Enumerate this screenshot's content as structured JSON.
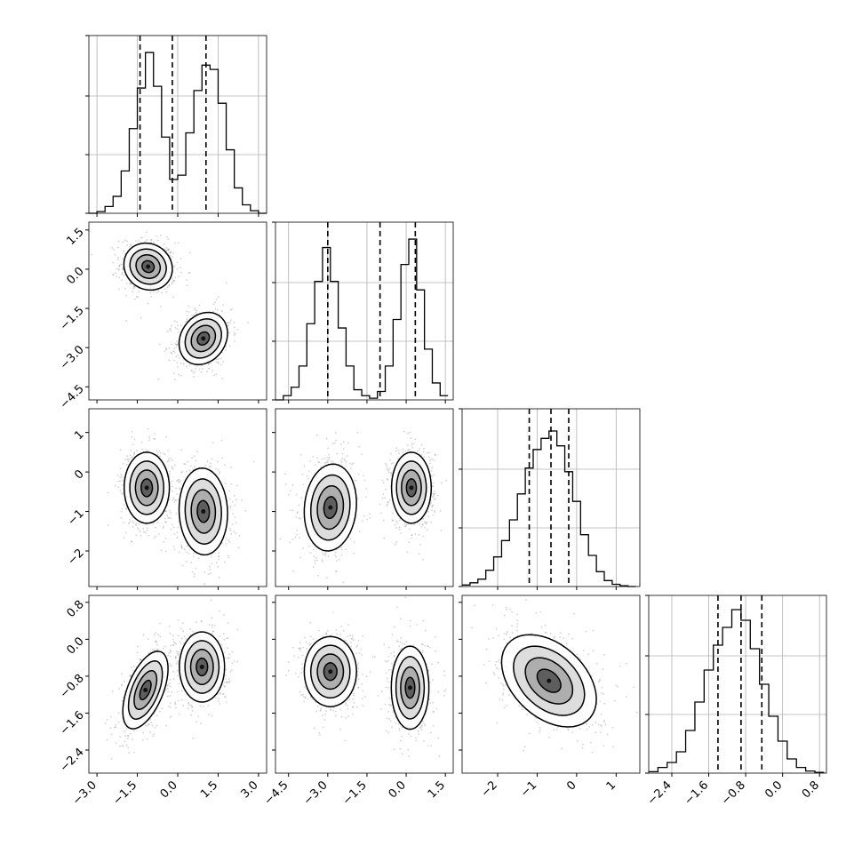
{
  "chart_data": {
    "type": "corner",
    "n_params": 4,
    "params": [
      {
        "range": [
          -3.3,
          3.3
        ],
        "ticks": [
          -3.0,
          -1.5,
          0.0,
          1.5,
          3.0
        ],
        "tick_labels": [
          "−3.0",
          "−1.5",
          "0.0",
          "1.5",
          "3.0"
        ],
        "quantiles": [
          -1.4,
          -0.2,
          1.05
        ]
      },
      {
        "range": [
          -5.0,
          1.8
        ],
        "ticks": [
          -4.5,
          -3.0,
          -1.5,
          0.0,
          1.5
        ],
        "tick_labels": [
          "−4.5",
          "−3.0",
          "−1.5",
          "0.0",
          "1.5"
        ],
        "quantiles": [
          -3.0,
          -1.0,
          0.35
        ]
      },
      {
        "range": [
          -2.9,
          1.6
        ],
        "ticks": [
          -2,
          -1,
          0,
          1
        ],
        "tick_labels": [
          "−2",
          "−1",
          "0",
          "1"
        ],
        "quantiles": [
          -1.2,
          -0.65,
          -0.2
        ]
      },
      {
        "range": [
          -2.9,
          0.95
        ],
        "ticks": [
          -2.4,
          -1.6,
          -0.8,
          0.0,
          0.8
        ],
        "tick_labels": [
          "−2.4",
          "−1.6",
          "−0.8",
          "0.0",
          "0.8"
        ],
        "quantiles": [
          -1.4,
          -0.9,
          -0.45
        ]
      }
    ],
    "histograms": [
      {
        "param": 0,
        "bin_edges": [
          -3.3,
          -3.0,
          -2.7,
          -2.4,
          -2.1,
          -1.8,
          -1.5,
          -1.2,
          -0.9,
          -0.6,
          -0.3,
          0.0,
          0.3,
          0.6,
          0.9,
          1.2,
          1.5,
          1.8,
          2.1,
          2.4,
          2.7,
          3.0,
          3.3
        ],
        "counts": [
          0,
          2,
          8,
          20,
          50,
          100,
          148,
          190,
          150,
          90,
          40,
          45,
          95,
          145,
          175,
          170,
          130,
          75,
          30,
          10,
          3,
          0
        ],
        "ylim": [
          0,
          210
        ]
      },
      {
        "param": 1,
        "bin_edges": [
          -5.0,
          -4.7,
          -4.4,
          -4.1,
          -3.8,
          -3.5,
          -3.2,
          -2.9,
          -2.6,
          -2.3,
          -2.0,
          -1.7,
          -1.4,
          -1.1,
          -0.8,
          -0.5,
          -0.2,
          0.1,
          0.4,
          0.7,
          1.0,
          1.3,
          1.6
        ],
        "counts": [
          0,
          5,
          15,
          40,
          90,
          140,
          180,
          140,
          85,
          40,
          12,
          5,
          2,
          10,
          40,
          95,
          160,
          190,
          130,
          60,
          20,
          5
        ],
        "ylim": [
          0,
          210
        ]
      },
      {
        "param": 2,
        "bin_edges": [
          -2.9,
          -2.7,
          -2.5,
          -2.3,
          -2.1,
          -1.9,
          -1.7,
          -1.5,
          -1.3,
          -1.1,
          -0.9,
          -0.7,
          -0.5,
          -0.3,
          -0.1,
          0.1,
          0.3,
          0.5,
          0.7,
          0.9,
          1.1,
          1.3,
          1.5
        ],
        "counts": [
          2,
          5,
          10,
          22,
          40,
          62,
          90,
          125,
          160,
          185,
          200,
          210,
          190,
          155,
          115,
          70,
          42,
          20,
          8,
          3,
          1,
          0
        ],
        "ylim": [
          0,
          240
        ]
      },
      {
        "param": 3,
        "bin_edges": [
          -2.9,
          -2.7,
          -2.5,
          -2.3,
          -2.1,
          -1.9,
          -1.7,
          -1.5,
          -1.3,
          -1.1,
          -0.9,
          -0.7,
          -0.5,
          -0.3,
          -0.1,
          0.1,
          0.3,
          0.5,
          0.7,
          0.9
        ],
        "counts": [
          2,
          8,
          15,
          30,
          60,
          100,
          145,
          180,
          205,
          230,
          215,
          175,
          125,
          80,
          45,
          20,
          8,
          3,
          1
        ],
        "ylim": [
          0,
          250
        ]
      }
    ],
    "scatter_2d": [
      {
        "x_param": 0,
        "y_param": 1,
        "components": [
          {
            "mx": -1.1,
            "my": 0.1,
            "sx": 0.45,
            "sy": 0.45,
            "rho": -0.1
          },
          {
            "mx": 0.95,
            "my": -2.65,
            "sx": 0.45,
            "sy": 0.5,
            "rho": 0.2
          }
        ]
      },
      {
        "x_param": 0,
        "y_param": 2,
        "components": [
          {
            "mx": -1.15,
            "my": -0.4,
            "sx": 0.42,
            "sy": 0.45,
            "rho": 0.0
          },
          {
            "mx": 0.95,
            "my": -1.0,
            "sx": 0.45,
            "sy": 0.55,
            "rho": -0.05
          }
        ]
      },
      {
        "x_param": 1,
        "y_param": 2,
        "components": [
          {
            "mx": -2.9,
            "my": -0.9,
            "sx": 0.5,
            "sy": 0.55,
            "rho": 0.1
          },
          {
            "mx": 0.2,
            "my": -0.4,
            "sx": 0.38,
            "sy": 0.45,
            "rho": 0.0
          }
        ]
      },
      {
        "x_param": 0,
        "y_param": 3,
        "components": [
          {
            "mx": -1.2,
            "my": -1.1,
            "sx": 0.42,
            "sy": 0.42,
            "rho": 0.55
          },
          {
            "mx": 0.9,
            "my": -0.6,
            "sx": 0.42,
            "sy": 0.38,
            "rho": 0.0
          }
        ]
      },
      {
        "x_param": 1,
        "y_param": 3,
        "components": [
          {
            "mx": -2.9,
            "my": -0.7,
            "sx": 0.5,
            "sy": 0.38,
            "rho": 0.0
          },
          {
            "mx": 0.15,
            "my": -1.05,
            "sx": 0.36,
            "sy": 0.45,
            "rho": 0.0
          }
        ]
      },
      {
        "x_param": 2,
        "y_param": 3,
        "components": [
          {
            "mx": -0.7,
            "my": -0.9,
            "sx": 0.6,
            "sy": 0.5,
            "rho": -0.4
          }
        ]
      }
    ],
    "style": {
      "line_color": "#000000",
      "grid_color": "#b0b0b0",
      "point_color": "#7f7f7f",
      "background": "#ffffff"
    },
    "grid": true
  }
}
